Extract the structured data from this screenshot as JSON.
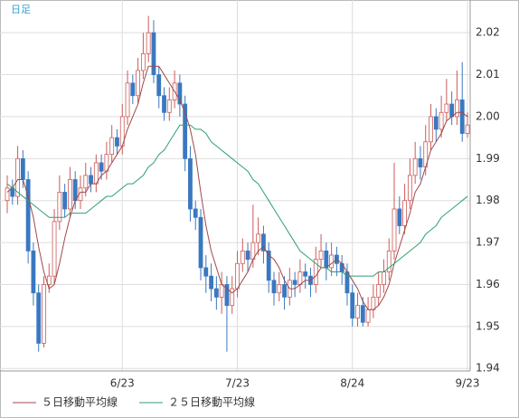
{
  "chart_data": {
    "type": "candlestick",
    "title": "日足",
    "categories": [
      null,
      null,
      null,
      null,
      null,
      null,
      null,
      null,
      null,
      null,
      null,
      null,
      null,
      null,
      null,
      null,
      null,
      null,
      null,
      null,
      null,
      null,
      "6/23",
      null,
      null,
      null,
      null,
      null,
      null,
      null,
      null,
      null,
      null,
      null,
      null,
      null,
      null,
      null,
      null,
      null,
      null,
      null,
      null,
      null,
      "7/23",
      null,
      null,
      null,
      null,
      null,
      null,
      null,
      null,
      null,
      null,
      null,
      null,
      null,
      null,
      null,
      null,
      null,
      null,
      null,
      null,
      null,
      "8/24",
      null,
      null,
      null,
      null,
      null,
      null,
      null,
      null,
      null,
      null,
      null,
      null,
      null,
      null,
      null,
      null,
      null,
      null,
      null,
      null,
      null,
      "9/23"
    ],
    "open": [
      1.98,
      1.983,
      1.981,
      1.99,
      1.985,
      1.968,
      1.958,
      1.946,
      1.96,
      1.962,
      1.975,
      1.982,
      1.978,
      1.985,
      1.98,
      1.983,
      1.986,
      1.984,
      1.989,
      1.987,
      1.991,
      1.995,
      1.993,
      2.0,
      2.008,
      2.005,
      2.011,
      2.015,
      2.02,
      2.01,
      2.005,
      2.001,
      2.004,
      2.008,
      2.003,
      1.99,
      1.978,
      1.976,
      1.964,
      1.962,
      1.959,
      1.957,
      1.96,
      1.955,
      1.959,
      1.965,
      1.968,
      1.966,
      1.97,
      1.972,
      1.968,
      1.961,
      1.958,
      1.96,
      1.957,
      1.961,
      1.96,
      1.963,
      1.962,
      1.96,
      1.966,
      1.968,
      1.964,
      1.967,
      1.965,
      1.963,
      1.958,
      1.952,
      1.955,
      1.951,
      1.954,
      1.957,
      1.96,
      1.963,
      1.968,
      1.978,
      1.974,
      1.98,
      1.986,
      1.99,
      1.988,
      1.994,
      2.0,
      1.997,
      2.001,
      2.003,
      2.0,
      2.004,
      1.996
    ],
    "high": [
      1.986,
      1.985,
      1.993,
      1.992,
      1.987,
      1.97,
      1.96,
      1.962,
      1.965,
      1.978,
      1.986,
      1.984,
      1.988,
      1.987,
      1.986,
      1.989,
      1.988,
      1.991,
      1.991,
      1.994,
      1.998,
      1.997,
      2.003,
      2.011,
      2.01,
      2.014,
      2.02,
      2.024,
      2.023,
      2.012,
      2.007,
      2.007,
      2.011,
      2.01,
      2.005,
      1.993,
      1.98,
      1.978,
      1.967,
      1.965,
      1.962,
      1.963,
      1.962,
      1.962,
      1.968,
      1.971,
      1.97,
      1.979,
      1.976,
      1.974,
      1.97,
      1.963,
      1.963,
      1.962,
      1.964,
      1.963,
      1.966,
      1.965,
      1.964,
      1.969,
      1.972,
      1.97,
      1.97,
      1.969,
      1.967,
      1.965,
      1.96,
      1.958,
      1.957,
      1.957,
      1.96,
      1.963,
      1.966,
      1.971,
      1.989,
      1.981,
      1.984,
      1.99,
      1.994,
      1.993,
      1.998,
      2.003,
      2.002,
      2.005,
      2.009,
      2.006,
      2.011,
      2.013,
      2.001
    ],
    "low": [
      1.977,
      1.979,
      1.979,
      1.983,
      1.965,
      1.955,
      1.944,
      1.945,
      1.958,
      1.96,
      1.973,
      1.976,
      1.976,
      1.978,
      1.978,
      1.981,
      1.982,
      1.982,
      1.985,
      1.985,
      1.989,
      1.991,
      1.991,
      1.998,
      2.003,
      2.003,
      2.009,
      2.013,
      2.008,
      2.002,
      1.999,
      1.999,
      2.002,
      2.0,
      1.987,
      1.975,
      1.973,
      1.961,
      1.958,
      1.956,
      1.954,
      1.953,
      1.944,
      1.953,
      1.957,
      1.963,
      1.963,
      1.964,
      1.967,
      1.965,
      1.958,
      1.955,
      1.956,
      1.954,
      1.955,
      1.957,
      1.958,
      1.959,
      1.957,
      1.958,
      1.964,
      1.961,
      1.962,
      1.962,
      1.96,
      1.955,
      1.95,
      1.95,
      1.95,
      1.95,
      1.952,
      1.955,
      1.958,
      1.961,
      1.966,
      1.972,
      1.972,
      1.978,
      1.984,
      1.985,
      1.986,
      1.992,
      1.994,
      1.995,
      1.999,
      1.998,
      1.998,
      1.994,
      1.995
    ],
    "close": [
      1.983,
      1.981,
      1.99,
      1.985,
      1.968,
      1.958,
      1.946,
      1.96,
      1.962,
      1.975,
      1.982,
      1.978,
      1.985,
      1.98,
      1.983,
      1.986,
      1.984,
      1.989,
      1.987,
      1.991,
      1.995,
      1.993,
      2.0,
      2.008,
      2.005,
      2.011,
      2.015,
      2.02,
      2.01,
      2.005,
      2.001,
      2.004,
      2.008,
      2.003,
      1.99,
      1.978,
      1.976,
      1.964,
      1.962,
      1.959,
      1.957,
      1.96,
      1.955,
      1.959,
      1.965,
      1.968,
      1.966,
      1.97,
      1.972,
      1.968,
      1.961,
      1.958,
      1.96,
      1.957,
      1.961,
      1.96,
      1.963,
      1.962,
      1.96,
      1.966,
      1.968,
      1.964,
      1.967,
      1.965,
      1.963,
      1.958,
      1.952,
      1.955,
      1.951,
      1.954,
      1.957,
      1.96,
      1.963,
      1.968,
      1.978,
      1.974,
      1.98,
      1.986,
      1.99,
      1.988,
      1.994,
      2.0,
      1.997,
      2.001,
      2.003,
      2.0,
      2.004,
      1.996,
      1.998
    ],
    "up_color": "#cc5a5a",
    "down_color": "#3a78c0",
    "series": [
      {
        "name": "５日移動平均線",
        "color": "#a04848",
        "values": [
          1.982,
          1.983,
          1.985,
          1.985,
          1.981,
          1.976,
          1.969,
          1.963,
          1.959,
          1.96,
          1.965,
          1.971,
          1.976,
          1.98,
          1.982,
          1.982,
          1.984,
          1.984,
          1.986,
          1.987,
          1.989,
          1.991,
          1.993,
          1.997,
          2.0,
          2.003,
          2.008,
          2.012,
          2.012,
          2.012,
          2.01,
          2.008,
          2.006,
          2.004,
          2.001,
          1.997,
          1.991,
          1.982,
          1.974,
          1.968,
          1.964,
          1.96,
          1.959,
          1.958,
          1.959,
          1.961,
          1.963,
          1.966,
          1.968,
          1.969,
          1.967,
          1.966,
          1.964,
          1.961,
          1.959,
          1.959,
          1.96,
          1.961,
          1.961,
          1.962,
          1.964,
          1.964,
          1.965,
          1.966,
          1.965,
          1.963,
          1.961,
          1.959,
          1.956,
          1.954,
          1.954,
          1.955,
          1.957,
          1.96,
          1.965,
          1.969,
          1.973,
          1.977,
          1.982,
          1.984,
          1.988,
          1.992,
          1.994,
          1.996,
          1.999,
          2.0,
          2.001,
          2.001,
          2.0
        ]
      },
      {
        "name": "２５日移動平均線",
        "color": "#2e9e72",
        "values": [
          1.984,
          1.983,
          1.982,
          1.981,
          1.98,
          1.979,
          1.978,
          1.977,
          1.976,
          1.976,
          1.976,
          1.976,
          1.977,
          1.977,
          1.977,
          1.977,
          1.978,
          1.979,
          1.98,
          1.981,
          1.981,
          1.982,
          1.983,
          1.984,
          1.984,
          1.985,
          1.986,
          1.988,
          1.989,
          1.991,
          1.992,
          1.994,
          1.996,
          1.998,
          1.998,
          1.998,
          1.997,
          1.997,
          1.996,
          1.994,
          1.993,
          1.992,
          1.991,
          1.99,
          1.989,
          1.988,
          1.987,
          1.985,
          1.984,
          1.982,
          1.98,
          1.978,
          1.976,
          1.974,
          1.972,
          1.97,
          1.968,
          1.967,
          1.966,
          1.965,
          1.964,
          1.964,
          1.963,
          1.963,
          1.963,
          1.962,
          1.962,
          1.962,
          1.962,
          1.962,
          1.962,
          1.963,
          1.963,
          1.964,
          1.965,
          1.966,
          1.967,
          1.968,
          1.969,
          1.97,
          1.972,
          1.973,
          1.974,
          1.976,
          1.977,
          1.978,
          1.979,
          1.98,
          1.981
        ]
      }
    ],
    "ylim": [
      1.9394,
      2.0278
    ],
    "yticks": [
      1.94,
      1.95,
      1.96,
      1.97,
      1.98,
      1.99,
      {
        "value": 2,
        "label": "2.00"
      },
      2.01,
      2.02
    ],
    "grid": true
  }
}
